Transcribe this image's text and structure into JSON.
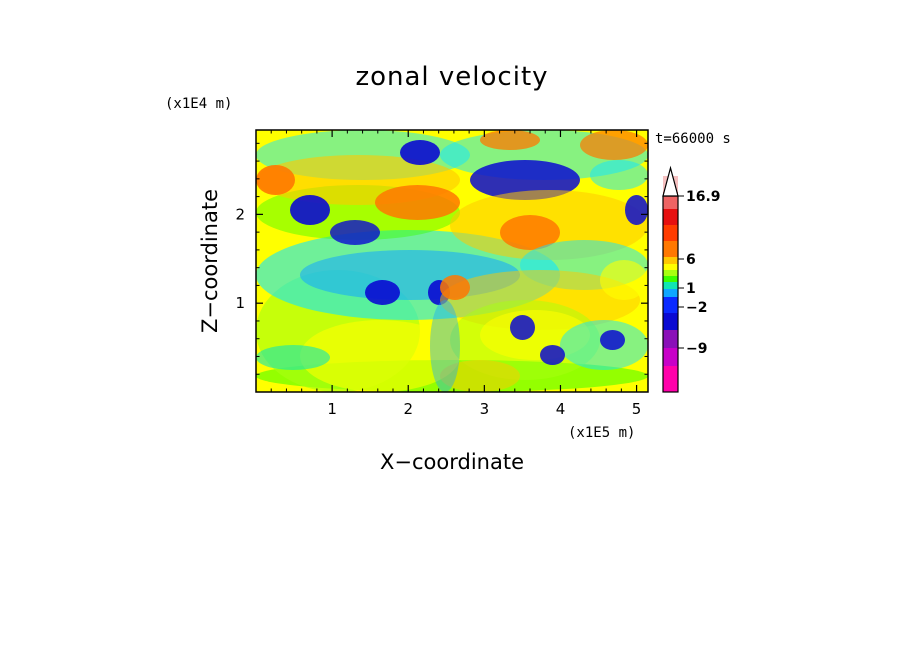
{
  "chart_data": {
    "type": "heatmap",
    "title": "zonal velocity",
    "xlabel": "X−coordinate",
    "ylabel": "Z−coordinate",
    "x_unit": "(x1E5 m)",
    "y_unit": "(x1E4 m)",
    "time_label": "t=66000 s",
    "xlim": [
      0,
      5.15
    ],
    "ylim": [
      0,
      2.95
    ],
    "x_ticks": [
      "1",
      "2",
      "3",
      "4",
      "5"
    ],
    "x_tick_values": [
      1,
      2,
      3,
      4,
      5
    ],
    "y_ticks": [
      "1",
      "2"
    ],
    "y_tick_values": [
      1,
      2
    ],
    "colorbar": {
      "colors": [
        "#ff00aa",
        "#c800c8",
        "#8a10b8",
        "#0a0ad2",
        "#0a2aff",
        "#0fa6ff",
        "#10e6b4",
        "#3cff00",
        "#a8ff10",
        "#ffff00",
        "#ffc800",
        "#ff7800",
        "#ff3c00",
        "#e61010",
        "#ee6464",
        "#f5bfbf"
      ],
      "labels": [
        "16.9",
        "6",
        "1",
        "−2",
        "−9"
      ],
      "label_values": [
        16.9,
        6,
        1,
        -2,
        -9
      ],
      "max_label": "16.9"
    }
  }
}
